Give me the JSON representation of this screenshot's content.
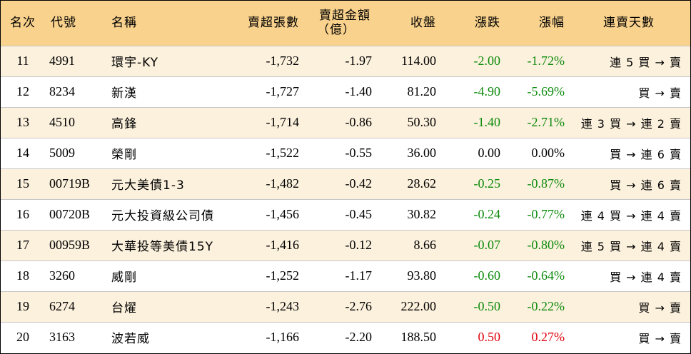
{
  "header": {
    "rank": "名次",
    "code": "代號",
    "name": "名稱",
    "net_sell_volume": "賣超張數",
    "net_sell_amount_line1": "賣超金額",
    "net_sell_amount_line2": "（億）",
    "close": "收盤",
    "change": "漲跌",
    "change_pct": "漲幅",
    "consecutive_days": "連賣天數"
  },
  "colors": {
    "header_bg": "#f9d28d",
    "odd_row_bg": "#fcf1dd",
    "up": "#e0000a",
    "down": "#0a8a0a"
  },
  "rows": [
    {
      "rank": "11",
      "code": "4991",
      "name": "環宇-KY",
      "volume": "-1,732",
      "amount": "-1.97",
      "close": "114.00",
      "change": "-2.00",
      "pct": "-1.72%",
      "days": "連 5 買 → 賣",
      "trend": "down"
    },
    {
      "rank": "12",
      "code": "8234",
      "name": "新漢",
      "volume": "-1,727",
      "amount": "-1.40",
      "close": "81.20",
      "change": "-4.90",
      "pct": "-5.69%",
      "days": "買 → 賣",
      "trend": "down"
    },
    {
      "rank": "13",
      "code": "4510",
      "name": "高鋒",
      "volume": "-1,714",
      "amount": "-0.86",
      "close": "50.30",
      "change": "-1.40",
      "pct": "-2.71%",
      "days": "連 3 買 → 連 2 賣",
      "trend": "down"
    },
    {
      "rank": "14",
      "code": "5009",
      "name": "榮剛",
      "volume": "-1,522",
      "amount": "-0.55",
      "close": "36.00",
      "change": "0.00",
      "pct": "0.00%",
      "days": "買 → 連 6 賣",
      "trend": "flat"
    },
    {
      "rank": "15",
      "code": "00719B",
      "name": "元大美債1-3",
      "volume": "-1,482",
      "amount": "-0.42",
      "close": "28.62",
      "change": "-0.25",
      "pct": "-0.87%",
      "days": "買 → 連 6 賣",
      "trend": "down"
    },
    {
      "rank": "16",
      "code": "00720B",
      "name": "元大投資級公司債",
      "volume": "-1,456",
      "amount": "-0.45",
      "close": "30.82",
      "change": "-0.24",
      "pct": "-0.77%",
      "days": "連 4 買 → 連 4 賣",
      "trend": "down"
    },
    {
      "rank": "17",
      "code": "00959B",
      "name": "大華投等美債15Y",
      "volume": "-1,416",
      "amount": "-0.12",
      "close": "8.66",
      "change": "-0.07",
      "pct": "-0.80%",
      "days": "連 5 買 → 連 4 賣",
      "trend": "down"
    },
    {
      "rank": "18",
      "code": "3260",
      "name": "威剛",
      "volume": "-1,252",
      "amount": "-1.17",
      "close": "93.80",
      "change": "-0.60",
      "pct": "-0.64%",
      "days": "買 → 連 4 賣",
      "trend": "down"
    },
    {
      "rank": "19",
      "code": "6274",
      "name": "台燿",
      "volume": "-1,243",
      "amount": "-2.76",
      "close": "222.00",
      "change": "-0.50",
      "pct": "-0.22%",
      "days": "買 → 賣",
      "trend": "down"
    },
    {
      "rank": "20",
      "code": "3163",
      "name": "波若威",
      "volume": "-1,166",
      "amount": "-2.20",
      "close": "188.50",
      "change": "0.50",
      "pct": "0.27%",
      "days": "買 → 賣",
      "trend": "up"
    }
  ]
}
